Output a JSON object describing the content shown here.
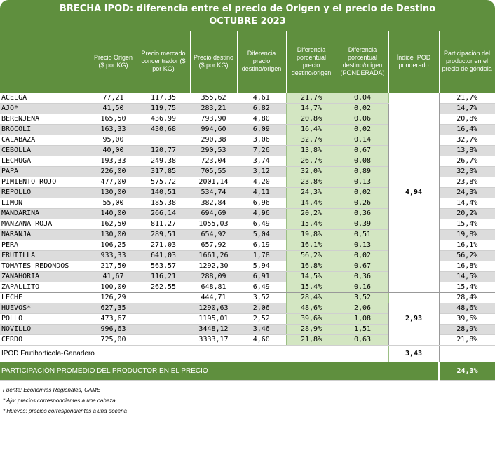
{
  "title_line1": "BRECHA IPOD: diferencia entre el precio de Origen y el precio de Destino",
  "title_line2": "OCTUBRE 2023",
  "headers": [
    "",
    "Precio Origen ($ por KG)",
    "Precio mercado concentrador ($ por KG)",
    "Precio destino ($ por KG)",
    "Diferencia precio destino/origen",
    "Diferencia porcentual precio destino/origen",
    "Diferencia porcentual destino/origen (PONDERADA)",
    "Índice IPOD ponderado",
    "Participación del productor en el precio de góndola"
  ],
  "rows": [
    [
      "ACELGA",
      "77,21",
      "117,35",
      "355,62",
      "4,61",
      "21,7%",
      "0,04",
      "21,7%"
    ],
    [
      "AJO*",
      "41,50",
      "119,75",
      "283,21",
      "6,82",
      "14,7%",
      "0,02",
      "14,7%"
    ],
    [
      "BERENJENA",
      "165,50",
      "436,99",
      "793,90",
      "4,80",
      "20,8%",
      "0,06",
      "20,8%"
    ],
    [
      "BROCOLI",
      "163,33",
      "430,68",
      "994,60",
      "6,09",
      "16,4%",
      "0,02",
      "16,4%"
    ],
    [
      "CALABAZA",
      "95,00",
      "",
      "290,38",
      "3,06",
      "32,7%",
      "0,14",
      "32,7%"
    ],
    [
      "CEBOLLA",
      "40,00",
      "120,77",
      "290,53",
      "7,26",
      "13,8%",
      "0,67",
      "13,8%"
    ],
    [
      "LECHUGA",
      "193,33",
      "249,38",
      "723,04",
      "3,74",
      "26,7%",
      "0,08",
      "26,7%"
    ],
    [
      "PAPA",
      "226,00",
      "317,85",
      "705,55",
      "3,12",
      "32,0%",
      "0,89",
      "32,0%"
    ],
    [
      "PIMIENTO ROJO",
      "477,00",
      "575,72",
      "2001,14",
      "4,20",
      "23,8%",
      "0,13",
      "23,8%"
    ],
    [
      "REPOLLO",
      "130,00",
      "140,51",
      "534,74",
      "4,11",
      "24,3%",
      "0,02",
      "24,3%"
    ],
    [
      "LIMON",
      "55,00",
      "185,38",
      "382,84",
      "6,96",
      "14,4%",
      "0,26",
      "14,4%"
    ],
    [
      "MANDARINA",
      "140,00",
      "266,14",
      "694,69",
      "4,96",
      "20,2%",
      "0,36",
      "20,2%"
    ],
    [
      "MANZANA ROJA",
      "162,50",
      "811,27",
      "1055,03",
      "6,49",
      "15,4%",
      "0,39",
      "15,4%"
    ],
    [
      "NARANJA",
      "130,00",
      "289,51",
      "654,92",
      "5,04",
      "19,8%",
      "0,51",
      "19,8%"
    ],
    [
      "PERA",
      "106,25",
      "271,03",
      "657,92",
      "6,19",
      "16,1%",
      "0,13",
      "16,1%"
    ],
    [
      "FRUTILLA",
      "933,33",
      "641,03",
      "1661,26",
      "1,78",
      "56,2%",
      "0,02",
      "56,2%"
    ],
    [
      "TOMATES REDONDOS",
      "217,50",
      "563,57",
      "1292,30",
      "5,94",
      "16,8%",
      "0,67",
      "16,8%"
    ],
    [
      "ZANAHORIA",
      "41,67",
      "116,21",
      "288,09",
      "6,91",
      "14,5%",
      "0,36",
      "14,5%"
    ],
    [
      "ZAPALLITO",
      "100,00",
      "262,55",
      "648,81",
      "6,49",
      "15,4%",
      "0,16",
      "15,4%"
    ]
  ],
  "group1_ipod": "4,94",
  "rows2": [
    [
      "LECHE",
      "126,29",
      "",
      "444,71",
      "3,52",
      "28,4%",
      "3,52",
      "28,4%"
    ],
    [
      "HUEVOS*",
      "627,35",
      "",
      "1290,63",
      "2,06",
      "48,6%",
      "2,06",
      "48,6%"
    ],
    [
      "POLLO",
      "473,67",
      "",
      "1195,01",
      "2,52",
      "39,6%",
      "1,08",
      "39,6%"
    ],
    [
      "NOVILLO",
      "996,63",
      "",
      "3448,12",
      "3,46",
      "28,9%",
      "1,51",
      "28,9%"
    ],
    [
      "CERDO",
      "725,00",
      "",
      "3333,17",
      "4,60",
      "21,8%",
      "0,63",
      "21,8%"
    ]
  ],
  "group2_ipod": "2,93",
  "ipod_label": "IPOD Frutihorticola-Ganadero",
  "ipod_total": "3,43",
  "participacion_label": "PARTICIPACIÓN PROMEDIO DEL PRODUCTOR EN EL PRECIO",
  "participacion_value": "24,3%",
  "notes": [
    "Fuente: Economías Regionales, CAME",
    "* Ajo: precios correspondientes a una cabeza",
    "* Huevos: precios correspondientes a una docena"
  ]
}
